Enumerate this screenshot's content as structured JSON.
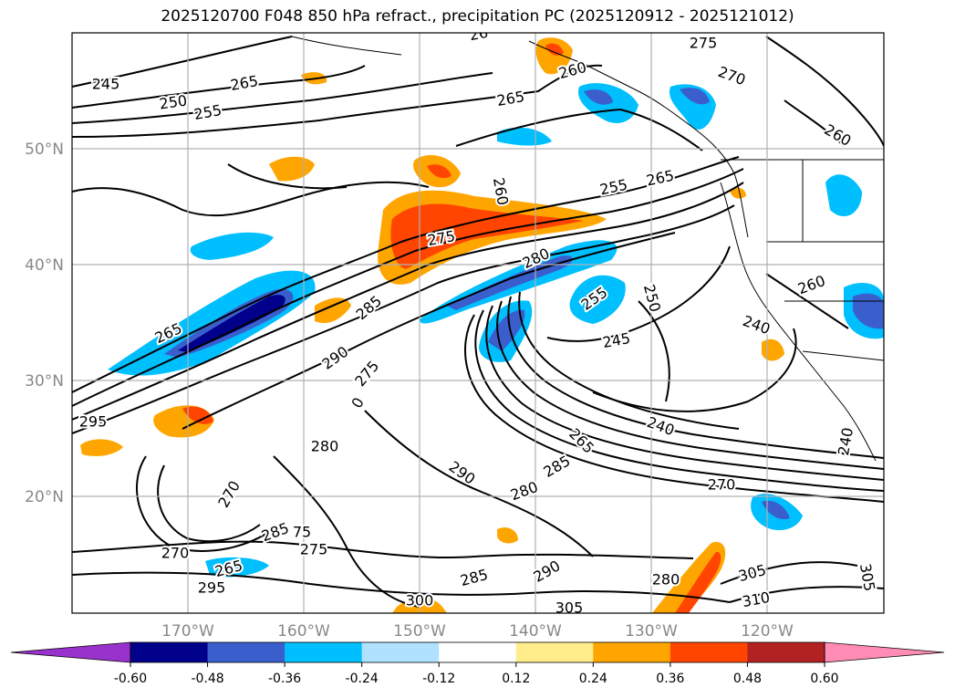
{
  "title": "2025120700 F048 850 hPa refract., precipitation PC (2025120912 - 2025121012)",
  "map": {
    "lon_labels": [
      "170°W",
      "160°W",
      "150°W",
      "140°W",
      "130°W",
      "120°W"
    ],
    "lat_labels": [
      "50°N",
      "40°N",
      "30°N",
      "20°N"
    ]
  },
  "contour_labels": [
    {
      "text": "245"
    },
    {
      "text": "250"
    },
    {
      "text": "255"
    },
    {
      "text": "26"
    },
    {
      "text": "275"
    },
    {
      "text": "260"
    },
    {
      "text": "270"
    },
    {
      "text": "265"
    },
    {
      "text": "265"
    },
    {
      "text": "260"
    },
    {
      "text": "260"
    },
    {
      "text": "255"
    },
    {
      "text": "265"
    },
    {
      "text": "275"
    },
    {
      "text": "280"
    },
    {
      "text": "285"
    },
    {
      "text": "255"
    },
    {
      "text": "250"
    },
    {
      "text": "265"
    },
    {
      "text": "290"
    },
    {
      "text": "275"
    },
    {
      "text": "0"
    },
    {
      "text": "245"
    },
    {
      "text": "260"
    },
    {
      "text": "240"
    },
    {
      "text": "295"
    },
    {
      "text": "280"
    },
    {
      "text": "240"
    },
    {
      "text": "265"
    },
    {
      "text": "285"
    },
    {
      "text": "290"
    },
    {
      "text": "280"
    },
    {
      "text": "270"
    },
    {
      "text": "240"
    },
    {
      "text": "270"
    },
    {
      "text": "285"
    },
    {
      "text": "75"
    },
    {
      "text": "275"
    },
    {
      "text": "270"
    },
    {
      "text": "265"
    },
    {
      "text": "295"
    },
    {
      "text": "285"
    },
    {
      "text": "290"
    },
    {
      "text": "280"
    },
    {
      "text": "305"
    },
    {
      "text": "300"
    },
    {
      "text": "305"
    },
    {
      "text": "310"
    },
    {
      "text": "305"
    }
  ],
  "colorbar": {
    "ticks": [
      "-0.60",
      "-0.48",
      "-0.36",
      "-0.24",
      "-0.12",
      "0.12",
      "0.24",
      "0.36",
      "0.48",
      "0.60"
    ],
    "colors": [
      "#9932cc",
      "#00008b",
      "#3a5fcd",
      "#00bfff",
      "#b0e2ff",
      "#ffffff",
      "#ffec8b",
      "#ffa500",
      "#ff4500",
      "#b22222",
      "#ff8cb4"
    ]
  },
  "colors": {
    "neg_strong": "#3a5fcd",
    "neg_deep": "#00008b",
    "neg_mid": "#00bfff",
    "neg_light": "#b0e2ff",
    "pos_light": "#ffec8b",
    "pos_mid": "#ffa500",
    "pos_strong": "#ff4500"
  }
}
